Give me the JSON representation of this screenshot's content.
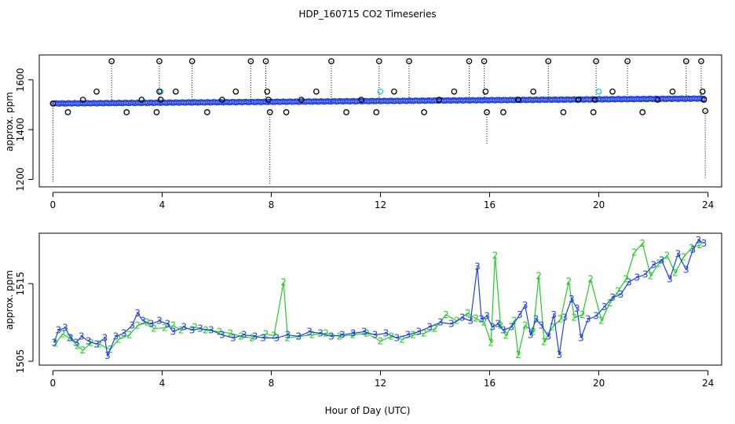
{
  "chart_data": [
    {
      "type": "scatter",
      "panel": "top",
      "title": "HDP_160715  CO2 Timeseries",
      "xlabel": "",
      "ylabel": "approx. ppm",
      "xlim": [
        -0.5,
        24.5
      ],
      "ylim": [
        1170,
        1700
      ],
      "xticks": [
        0,
        4,
        8,
        12,
        16,
        20,
        24
      ],
      "xtick_labels": [
        "0",
        "4",
        "8",
        "12",
        "16",
        "20",
        "24"
      ],
      "yticks": [
        1200,
        1400,
        1600
      ],
      "ytick_labels": [
        "1200",
        "1400",
        "1600"
      ],
      "colors": {
        "baseline": "#1f3fe6",
        "highlight": "#25c9e6",
        "outlier": "#000000"
      },
      "baseline": {
        "start": 1505,
        "end": 1525
      },
      "highlight_points": [
        {
          "x": 3.95,
          "y": 1553
        },
        {
          "x": 12.0,
          "y": 1553
        },
        {
          "x": 20.0,
          "y": 1553
        }
      ],
      "outliers": [
        {
          "x": 0.0,
          "y": 1505,
          "drop_to": 1190
        },
        {
          "x": 0.55,
          "y": 1470
        },
        {
          "x": 1.1,
          "y": 1520
        },
        {
          "x": 1.6,
          "y": 1553
        },
        {
          "x": 2.15,
          "y": 1675,
          "drop_to": 1510
        },
        {
          "x": 2.7,
          "y": 1470
        },
        {
          "x": 3.25,
          "y": 1520
        },
        {
          "x": 3.8,
          "y": 1470
        },
        {
          "x": 3.9,
          "y": 1675,
          "drop_to": 1510
        },
        {
          "x": 3.9,
          "y": 1553
        },
        {
          "x": 3.95,
          "y": 1520
        },
        {
          "x": 4.5,
          "y": 1553
        },
        {
          "x": 5.1,
          "y": 1675,
          "drop_to": 1510
        },
        {
          "x": 5.65,
          "y": 1470
        },
        {
          "x": 6.2,
          "y": 1520
        },
        {
          "x": 6.7,
          "y": 1553
        },
        {
          "x": 7.25,
          "y": 1675,
          "drop_to": 1510
        },
        {
          "x": 7.8,
          "y": 1675,
          "drop_to": 1510
        },
        {
          "x": 7.85,
          "y": 1553
        },
        {
          "x": 7.9,
          "y": 1520
        },
        {
          "x": 7.95,
          "y": 1470,
          "drop_to": 1180
        },
        {
          "x": 8.55,
          "y": 1470
        },
        {
          "x": 9.1,
          "y": 1520
        },
        {
          "x": 9.65,
          "y": 1553
        },
        {
          "x": 10.2,
          "y": 1675,
          "drop_to": 1510
        },
        {
          "x": 10.75,
          "y": 1470
        },
        {
          "x": 11.3,
          "y": 1520
        },
        {
          "x": 11.85,
          "y": 1470
        },
        {
          "x": 11.95,
          "y": 1675,
          "drop_to": 1510
        },
        {
          "x": 12.5,
          "y": 1553
        },
        {
          "x": 13.05,
          "y": 1675,
          "drop_to": 1510
        },
        {
          "x": 13.6,
          "y": 1470
        },
        {
          "x": 14.15,
          "y": 1520
        },
        {
          "x": 14.7,
          "y": 1553
        },
        {
          "x": 15.25,
          "y": 1675,
          "drop_to": 1510
        },
        {
          "x": 15.8,
          "y": 1675,
          "drop_to": 1510
        },
        {
          "x": 15.85,
          "y": 1553
        },
        {
          "x": 15.9,
          "y": 1470,
          "drop_to": 1340
        },
        {
          "x": 16.5,
          "y": 1470
        },
        {
          "x": 17.05,
          "y": 1520
        },
        {
          "x": 17.6,
          "y": 1553
        },
        {
          "x": 18.15,
          "y": 1675,
          "drop_to": 1510
        },
        {
          "x": 18.7,
          "y": 1470
        },
        {
          "x": 19.25,
          "y": 1520
        },
        {
          "x": 19.8,
          "y": 1470
        },
        {
          "x": 19.9,
          "y": 1675,
          "drop_to": 1510
        },
        {
          "x": 19.85,
          "y": 1520
        },
        {
          "x": 20.5,
          "y": 1553
        },
        {
          "x": 21.05,
          "y": 1675,
          "drop_to": 1510
        },
        {
          "x": 21.6,
          "y": 1470
        },
        {
          "x": 22.15,
          "y": 1520
        },
        {
          "x": 22.7,
          "y": 1553
        },
        {
          "x": 23.2,
          "y": 1675,
          "drop_to": 1510
        },
        {
          "x": 23.75,
          "y": 1675,
          "drop_to": 1510
        },
        {
          "x": 23.8,
          "y": 1553
        },
        {
          "x": 23.85,
          "y": 1520
        },
        {
          "x": 23.9,
          "y": 1475,
          "drop_to": 1200
        }
      ]
    },
    {
      "type": "line",
      "panel": "bottom",
      "xlabel": "Hour of Day (UTC)",
      "ylabel": "approx. ppm",
      "xlim": [
        -0.5,
        24.5
      ],
      "ylim": [
        1504.5,
        1521.5
      ],
      "xticks": [
        0,
        4,
        8,
        12,
        16,
        20,
        24
      ],
      "xtick_labels": [
        "0",
        "4",
        "8",
        "12",
        "16",
        "20",
        "24"
      ],
      "yticks": [
        1505,
        1515
      ],
      "ytick_labels": [
        "1505",
        "1515"
      ],
      "series": [
        {
          "name": "2",
          "marker": "2",
          "color": "#22cc22",
          "points": [
            [
              0.1,
              1507.3
            ],
            [
              0.35,
              1508.5
            ],
            [
              0.6,
              1508.0
            ],
            [
              0.9,
              1507.0
            ],
            [
              1.1,
              1506.4
            ],
            [
              1.4,
              1507.4
            ],
            [
              1.7,
              1507.2
            ],
            [
              2.1,
              1506.5
            ],
            [
              2.4,
              1507.8
            ],
            [
              2.8,
              1508.4
            ],
            [
              3.1,
              1509.6
            ],
            [
              3.45,
              1510.0
            ],
            [
              3.7,
              1509.2
            ],
            [
              4.1,
              1509.3
            ],
            [
              4.4,
              1509.6
            ],
            [
              4.7,
              1509.0
            ],
            [
              5.2,
              1509.4
            ],
            [
              5.6,
              1509.0
            ],
            [
              6.1,
              1508.8
            ],
            [
              6.5,
              1508.6
            ],
            [
              6.9,
              1508.2
            ],
            [
              7.3,
              1508.0
            ],
            [
              7.8,
              1508.5
            ],
            [
              8.1,
              1508.3
            ],
            [
              8.45,
              1515.2
            ],
            [
              8.6,
              1508.0
            ],
            [
              9.0,
              1508.2
            ],
            [
              9.5,
              1508.4
            ],
            [
              10.0,
              1508.6
            ],
            [
              10.5,
              1508.2
            ],
            [
              11.0,
              1508.4
            ],
            [
              11.5,
              1508.6
            ],
            [
              12.0,
              1507.6
            ],
            [
              12.4,
              1508.2
            ],
            [
              12.8,
              1507.8
            ],
            [
              13.2,
              1508.4
            ],
            [
              13.6,
              1508.6
            ],
            [
              14.0,
              1509.2
            ],
            [
              14.4,
              1511.0
            ],
            [
              14.8,
              1510.2
            ],
            [
              15.2,
              1511.2
            ],
            [
              15.5,
              1510.5
            ],
            [
              15.8,
              1510.0
            ],
            [
              16.05,
              1507.4
            ],
            [
              16.2,
              1518.6
            ],
            [
              16.4,
              1509.6
            ],
            [
              16.6,
              1508.3
            ],
            [
              16.9,
              1510.2
            ],
            [
              17.05,
              1505.8
            ],
            [
              17.3,
              1509.6
            ],
            [
              17.6,
              1508.8
            ],
            [
              17.8,
              1516.0
            ],
            [
              18.0,
              1507.5
            ],
            [
              18.3,
              1509.4
            ],
            [
              18.6,
              1510.4
            ],
            [
              18.9,
              1515.3
            ],
            [
              19.1,
              1510.6
            ],
            [
              19.4,
              1511.0
            ],
            [
              19.7,
              1515.6
            ],
            [
              20.1,
              1510.2
            ],
            [
              20.4,
              1512.5
            ],
            [
              20.7,
              1514.0
            ],
            [
              21.0,
              1515.6
            ],
            [
              21.3,
              1519.0
            ],
            [
              21.6,
              1520.2
            ],
            [
              21.9,
              1516.0
            ],
            [
              22.2,
              1517.6
            ],
            [
              22.5,
              1518.6
            ],
            [
              22.8,
              1516.4
            ],
            [
              23.1,
              1518.4
            ],
            [
              23.4,
              1519.6
            ],
            [
              23.7,
              1520.0
            ]
          ]
        },
        {
          "name": "3",
          "marker": "3",
          "color": "#1f3fe6",
          "points": [
            [
              0.05,
              1507.4
            ],
            [
              0.2,
              1509.0
            ],
            [
              0.45,
              1509.3
            ],
            [
              0.65,
              1508.0
            ],
            [
              0.85,
              1507.4
            ],
            [
              1.05,
              1508.2
            ],
            [
              1.3,
              1507.6
            ],
            [
              1.6,
              1507.2
            ],
            [
              1.9,
              1508.0
            ],
            [
              2.0,
              1505.7
            ],
            [
              2.3,
              1508.2
            ],
            [
              2.6,
              1508.6
            ],
            [
              2.9,
              1509.6
            ],
            [
              3.1,
              1511.2
            ],
            [
              3.3,
              1510.2
            ],
            [
              3.6,
              1509.8
            ],
            [
              3.9,
              1510.2
            ],
            [
              4.2,
              1509.8
            ],
            [
              4.4,
              1508.8
            ],
            [
              4.8,
              1509.4
            ],
            [
              5.1,
              1509.0
            ],
            [
              5.4,
              1509.2
            ],
            [
              5.8,
              1509.0
            ],
            [
              6.2,
              1508.4
            ],
            [
              6.6,
              1508.0
            ],
            [
              7.0,
              1508.4
            ],
            [
              7.4,
              1508.2
            ],
            [
              7.7,
              1508.0
            ],
            [
              8.2,
              1508.0
            ],
            [
              8.6,
              1508.4
            ],
            [
              9.0,
              1508.2
            ],
            [
              9.4,
              1508.8
            ],
            [
              9.8,
              1508.6
            ],
            [
              10.2,
              1508.2
            ],
            [
              10.6,
              1508.4
            ],
            [
              11.0,
              1508.6
            ],
            [
              11.4,
              1508.8
            ],
            [
              11.8,
              1508.4
            ],
            [
              12.2,
              1508.6
            ],
            [
              12.6,
              1508.0
            ],
            [
              13.0,
              1508.4
            ],
            [
              13.4,
              1508.8
            ],
            [
              13.8,
              1509.4
            ],
            [
              14.2,
              1510.0
            ],
            [
              14.6,
              1509.8
            ],
            [
              15.0,
              1510.6
            ],
            [
              15.3,
              1510.2
            ],
            [
              15.55,
              1517.2
            ],
            [
              15.7,
              1510.4
            ],
            [
              15.9,
              1510.8
            ],
            [
              16.1,
              1509.4
            ],
            [
              16.3,
              1509.8
            ],
            [
              16.5,
              1509.0
            ],
            [
              16.8,
              1509.4
            ],
            [
              17.1,
              1511.0
            ],
            [
              17.3,
              1512.2
            ],
            [
              17.5,
              1508.4
            ],
            [
              17.7,
              1510.4
            ],
            [
              17.9,
              1509.6
            ],
            [
              18.15,
              1508.2
            ],
            [
              18.35,
              1511.0
            ],
            [
              18.55,
              1505.8
            ],
            [
              18.75,
              1510.6
            ],
            [
              19.0,
              1513.0
            ],
            [
              19.2,
              1511.8
            ],
            [
              19.35,
              1508.0
            ],
            [
              19.6,
              1510.4
            ],
            [
              19.9,
              1510.8
            ],
            [
              20.2,
              1512.0
            ],
            [
              20.5,
              1513.2
            ],
            [
              20.8,
              1513.6
            ],
            [
              21.1,
              1515.2
            ],
            [
              21.4,
              1515.8
            ],
            [
              21.7,
              1516.2
            ],
            [
              22.0,
              1517.4
            ],
            [
              22.3,
              1518.0
            ],
            [
              22.6,
              1515.6
            ],
            [
              22.9,
              1518.8
            ],
            [
              23.2,
              1516.8
            ],
            [
              23.45,
              1519.4
            ],
            [
              23.65,
              1520.6
            ],
            [
              23.85,
              1520.2
            ]
          ]
        }
      ]
    }
  ]
}
